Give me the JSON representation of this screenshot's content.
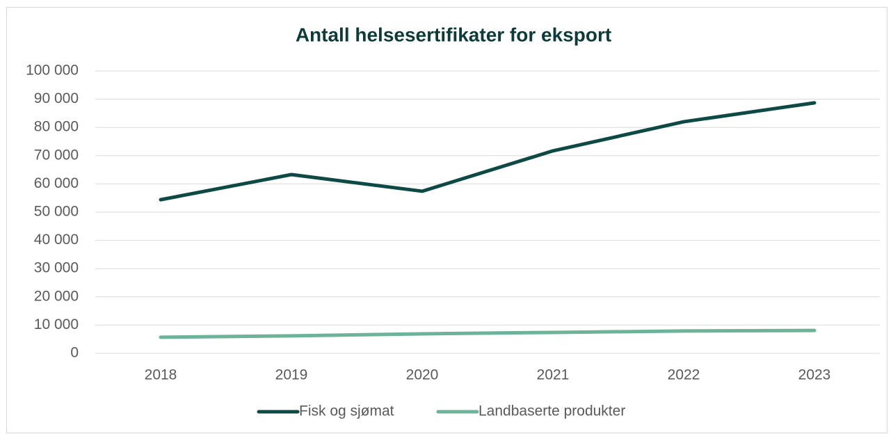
{
  "chart_data": {
    "type": "line",
    "title": "Antall helsesertifikater for eksport",
    "categories": [
      "2018",
      "2019",
      "2020",
      "2021",
      "2022",
      "2023"
    ],
    "series": [
      {
        "name": "Fisk og sjømat",
        "color": "#0d4a45",
        "values": [
          54400,
          63300,
          57400,
          71700,
          82000,
          88700
        ]
      },
      {
        "name": "Landbaserte produkter",
        "color": "#6db39a",
        "values": [
          5700,
          6200,
          6900,
          7400,
          7900,
          8100
        ]
      }
    ],
    "ylim": [
      0,
      100000
    ],
    "yticks": [
      0,
      {
        "value": 10000,
        "label": "10 000"
      },
      {
        "value": 20000,
        "label": "20 000"
      },
      {
        "value": 30000,
        "label": "30 000"
      },
      {
        "value": 40000,
        "label": "40 000"
      },
      {
        "value": 50000,
        "label": "50 000"
      },
      {
        "value": 60000,
        "label": "60 000"
      },
      {
        "value": 70000,
        "label": "70 000"
      },
      {
        "value": 80000,
        "label": "80 000"
      },
      {
        "value": 90000,
        "label": "90 000"
      },
      {
        "value": 100000,
        "label": "100 000"
      }
    ],
    "grid": true,
    "legend": "bottom"
  }
}
